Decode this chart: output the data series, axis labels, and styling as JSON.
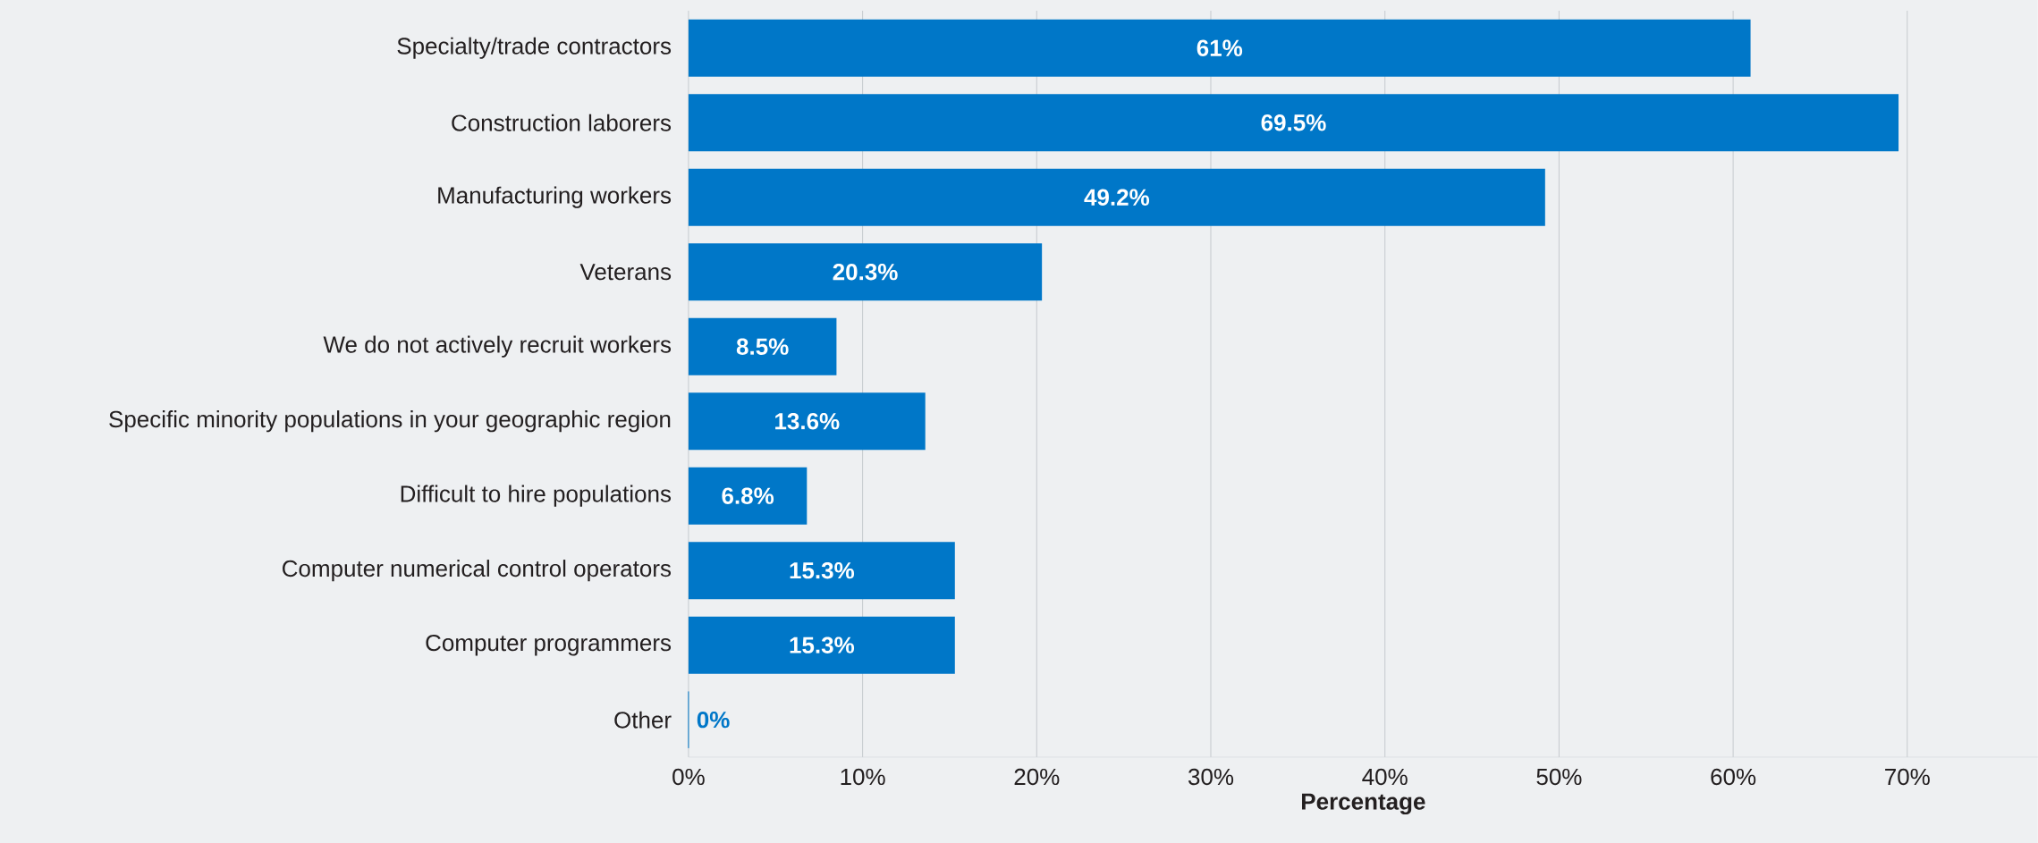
{
  "chart_data": {
    "type": "bar",
    "orientation": "horizontal",
    "xlabel": "Percentage",
    "categories": [
      "Specialty/trade contractors",
      "Construction laborers",
      "Manufacturing workers",
      "Veterans",
      "We do not actively recruit workers",
      "Specific minority populations in your geographic region",
      "Difficult to hire populations",
      "Computer numerical control operators",
      "Computer programmers",
      "Other"
    ],
    "values": [
      61,
      69.5,
      49.2,
      20.3,
      8.5,
      13.6,
      6.8,
      15.3,
      15.3,
      0
    ],
    "value_labels": [
      "61%",
      "69.5%",
      "49.2%",
      "20.3%",
      "8.5%",
      "13.6%",
      "6.8%",
      "15.3%",
      "15.3%",
      "0%"
    ],
    "color": "#0077c8",
    "xlim": [
      0,
      77.5
    ],
    "xticks": [
      {
        "value": 0,
        "label": "0%"
      },
      {
        "value": 10,
        "label": "10%"
      },
      {
        "value": 20,
        "label": "20%"
      },
      {
        "value": 30,
        "label": "30%"
      },
      {
        "value": 40,
        "label": "40%"
      },
      {
        "value": 50,
        "label": "50%"
      },
      {
        "value": 60,
        "label": "60%"
      },
      {
        "value": 70,
        "label": "70%"
      }
    ],
    "grid": "x"
  }
}
